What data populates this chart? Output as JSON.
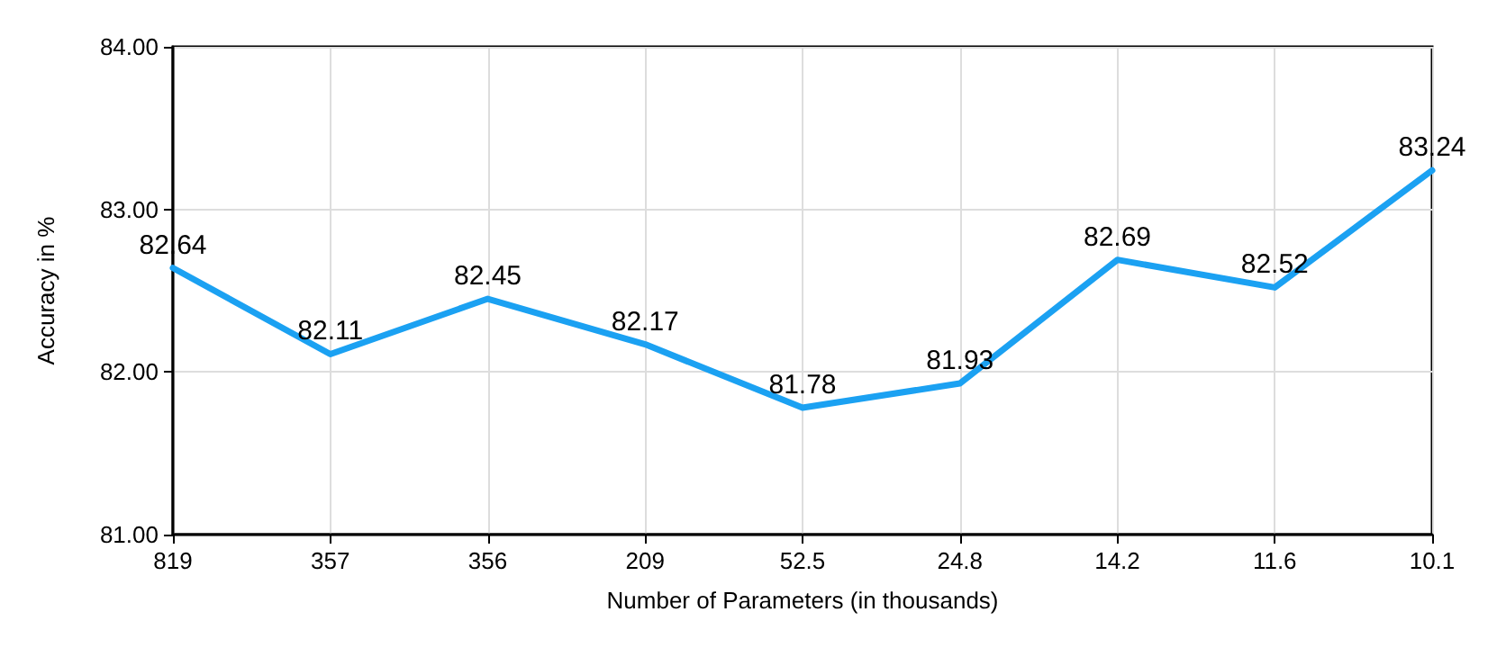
{
  "chart_data": {
    "type": "line",
    "xlabel": "Number of Parameters (in thousands)",
    "ylabel": "Accuracy in %",
    "categories": [
      "819",
      "357",
      "356",
      "209",
      "52.5",
      "24.8",
      "14.2",
      "11.6",
      "10.1"
    ],
    "series": [
      {
        "color": "#1ba1f2",
        "values": [
          82.64,
          82.11,
          82.45,
          82.17,
          81.78,
          81.93,
          82.69,
          82.52,
          83.24
        ]
      }
    ],
    "ylim": [
      81,
      84
    ],
    "yticks": [
      {
        "value": 81,
        "label": "81.00"
      },
      {
        "value": 82,
        "label": "82.00"
      },
      {
        "value": 83,
        "label": "83.00"
      },
      {
        "value": 84,
        "label": "84.00"
      }
    ],
    "grid": true,
    "data_labels": true,
    "marker": "none",
    "line_style": "solid"
  }
}
